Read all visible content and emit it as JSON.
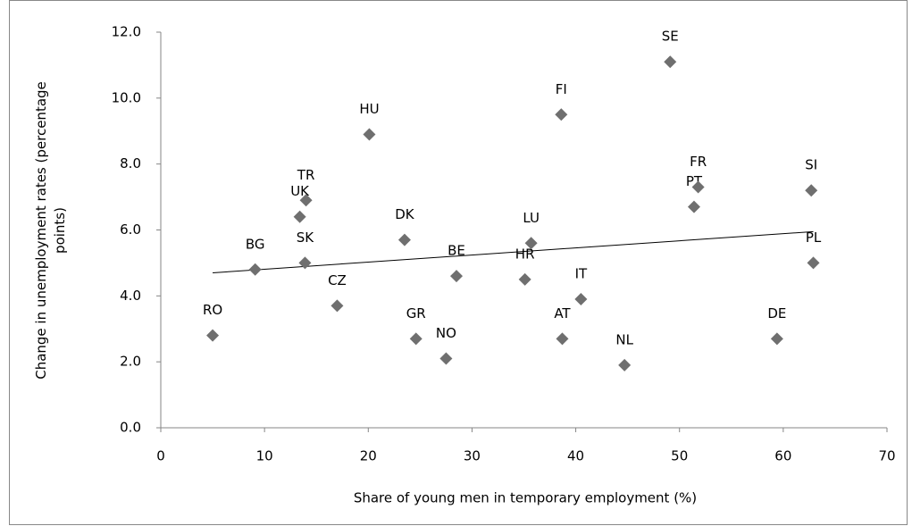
{
  "chart_data": {
    "type": "scatter",
    "x_label": "Share of young men in temporary employment (%)",
    "y_label": [
      "Change in unemployment rates (percentage",
      "points)"
    ],
    "points": [
      "RO",
      "BG",
      "UK",
      "TR",
      "SK",
      "HU",
      "CZ",
      "DK",
      "GR",
      "NO",
      "BE",
      "HR",
      "LU",
      "FI",
      "AT",
      "IT",
      "NL",
      "SE",
      "PT",
      "FR",
      "DE",
      "SI",
      "PL"
    ],
    "x": [
      5.0,
      9.1,
      13.4,
      14.0,
      13.9,
      20.1,
      17.0,
      23.5,
      24.6,
      27.5,
      28.5,
      35.1,
      35.7,
      38.6,
      38.7,
      40.5,
      44.7,
      49.1,
      51.4,
      51.8,
      59.4,
      62.7,
      62.9
    ],
    "values": [
      2.8,
      4.8,
      6.4,
      6.9,
      5.0,
      8.9,
      3.7,
      5.7,
      2.7,
      2.1,
      4.6,
      4.5,
      5.6,
      9.5,
      2.7,
      3.9,
      1.9,
      11.1,
      6.7,
      7.3,
      2.7,
      7.2,
      5.0
    ],
    "color": "#6f6f6f",
    "trendline": {
      "x": [
        5.0,
        62.9
      ],
      "values": [
        4.7,
        5.95
      ],
      "color": "#000000"
    },
    "xlim": [
      0,
      70
    ],
    "xticks": [
      0,
      10,
      20,
      30,
      40,
      50,
      60,
      70
    ],
    "ylim": [
      0,
      12
    ],
    "yticks": [
      {
        "value": 0,
        "label": "0.0"
      },
      {
        "value": 2,
        "label": "2.0"
      },
      {
        "value": 4,
        "label": "4.0"
      },
      {
        "value": 6,
        "label": "6.0"
      },
      {
        "value": 8,
        "label": "8.0"
      },
      {
        "value": 10,
        "label": "10.0"
      },
      {
        "value": 12,
        "label": "12.0"
      }
    ],
    "grid": false
  }
}
